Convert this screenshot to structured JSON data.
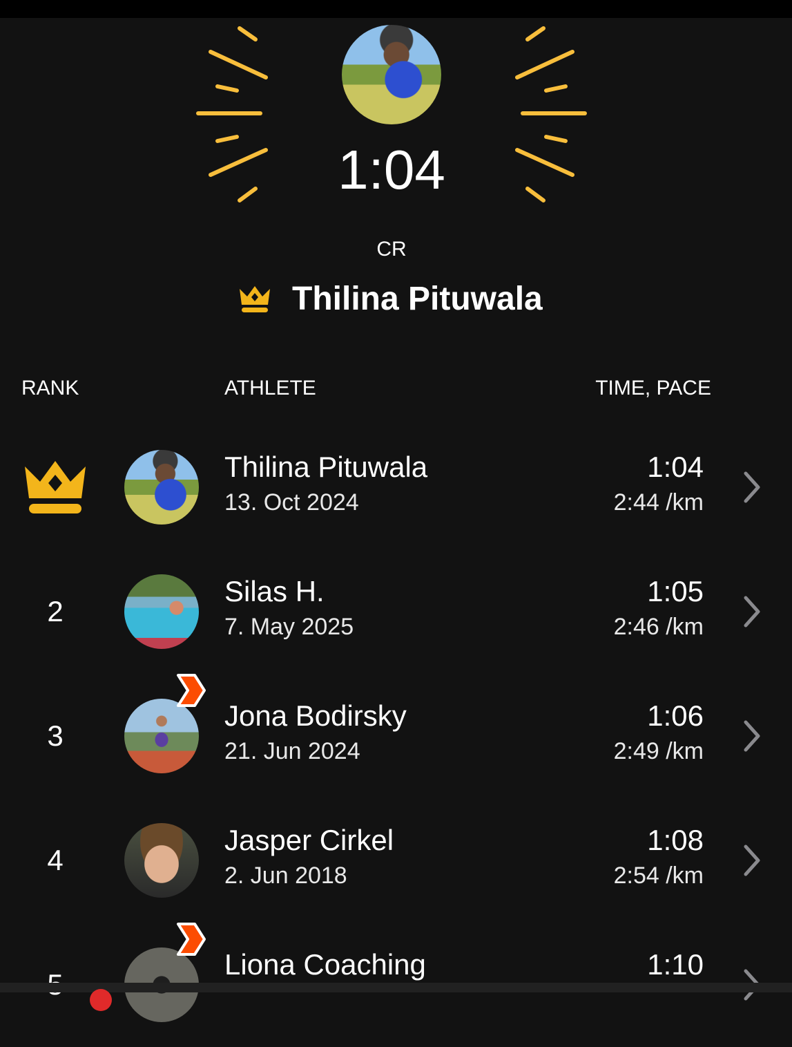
{
  "colors": {
    "accent_gold": "#f8be3c",
    "crown": "#f3b51b",
    "badge": "#fc4c02",
    "background": "#121212"
  },
  "hero": {
    "time": "1:04",
    "label": "CR",
    "holder_name": "Thilina Pituwala",
    "icon": "crown-icon"
  },
  "table": {
    "headers": {
      "rank": "RANK",
      "athlete": "ATHLETE",
      "time_pace": "TIME, PACE"
    },
    "rows": [
      {
        "rank": "",
        "rank_icon": "crown-icon",
        "name": "Thilina Pituwala",
        "date": "13. Oct 2024",
        "time": "1:04",
        "pace": "2:44 /km",
        "subscriber_badge": false
      },
      {
        "rank": "2",
        "name": "Silas H.",
        "date": "7. May 2025",
        "time": "1:05",
        "pace": "2:46 /km",
        "subscriber_badge": false
      },
      {
        "rank": "3",
        "name": "Jona Bodirsky",
        "date": "21. Jun 2024",
        "time": "1:06",
        "pace": "2:49 /km",
        "subscriber_badge": true
      },
      {
        "rank": "4",
        "name": "Jasper Cirkel",
        "date": "2. Jun 2018",
        "time": "1:08",
        "pace": "2:54 /km",
        "subscriber_badge": false
      },
      {
        "rank": "5",
        "name": "Liona Coaching",
        "date": "",
        "time": "1:10",
        "pace": "",
        "subscriber_badge": true
      }
    ]
  }
}
